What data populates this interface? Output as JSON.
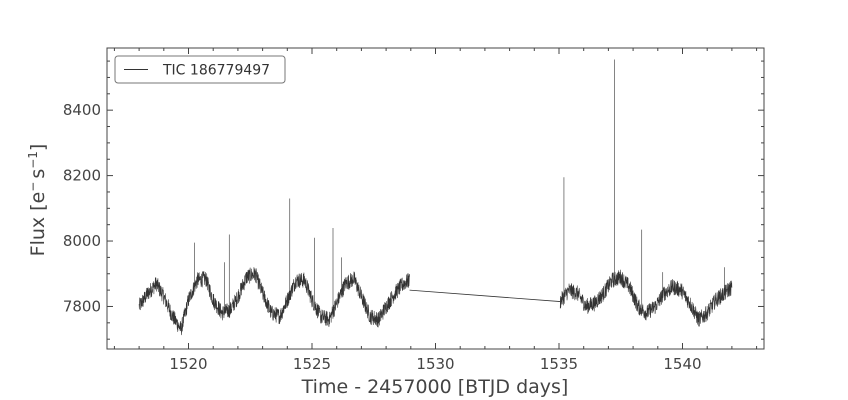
{
  "chart_data": {
    "type": "line",
    "title": "",
    "xlabel": "Time - 2457000 [BTJD days]",
    "ylabel_main": "Flux [e",
    "ylabel_sup1": "−",
    "ylabel_mid": "s",
    "ylabel_sup2": "−1",
    "ylabel_end": "]",
    "xlim": [
      1516.7,
      1543.3
    ],
    "ylim": [
      7670,
      8590
    ],
    "x_ticks": [
      1520,
      1525,
      1530,
      1535,
      1540
    ],
    "y_ticks": [
      7800,
      8000,
      8200,
      8400
    ],
    "x_minor_step": 1,
    "y_minor_step": 50,
    "grid": false,
    "legend_position": "top-left",
    "series": [
      {
        "name": "TIC 186779497",
        "color": "#333333",
        "segments": [
          {
            "x": [
              1518.0,
              1518.35,
              1518.7,
              1519.0,
              1519.35,
              1519.7,
              1520.0,
              1520.35,
              1520.7,
              1521.0,
              1521.35,
              1521.7,
              1522.0,
              1522.35,
              1522.7,
              1523.0,
              1523.35,
              1523.7,
              1524.0,
              1524.35,
              1524.7,
              1525.0,
              1525.35,
              1525.7,
              1526.0,
              1526.35,
              1526.7,
              1527.0,
              1527.35,
              1527.7,
              1528.0,
              1528.35,
              1528.7,
              1528.95
            ],
            "y": [
              7800,
              7840,
              7870,
              7830,
              7770,
              7730,
              7820,
              7880,
              7885,
              7820,
              7780,
              7790,
              7830,
              7890,
              7900,
              7840,
              7780,
              7770,
              7820,
              7880,
              7880,
              7820,
              7770,
              7760,
              7810,
              7870,
              7885,
              7830,
              7770,
              7760,
              7800,
              7840,
              7870,
              7880
            ]
          },
          {
            "x": [
              1528.95,
              1535.05
            ],
            "y": [
              7850,
              7815
            ]
          },
          {
            "x": [
              1535.05,
              1535.4,
              1535.75,
              1536.1,
              1536.45,
              1536.8,
              1537.15,
              1537.5,
              1537.85,
              1538.2,
              1538.55,
              1538.9,
              1539.25,
              1539.6,
              1539.95,
              1540.3,
              1540.65,
              1541.0,
              1541.35,
              1541.7,
              1542.0
            ],
            "y": [
              7815,
              7850,
              7840,
              7800,
              7810,
              7840,
              7880,
              7890,
              7860,
              7800,
              7780,
              7800,
              7840,
              7860,
              7850,
              7810,
              7760,
              7780,
              7820,
              7840,
              7860
            ]
          }
        ],
        "spikes": [
          {
            "x": 1520.25,
            "y": 7995
          },
          {
            "x": 1521.45,
            "y": 7935
          },
          {
            "x": 1521.65,
            "y": 8020
          },
          {
            "x": 1524.1,
            "y": 8130
          },
          {
            "x": 1525.1,
            "y": 8010
          },
          {
            "x": 1525.85,
            "y": 8040
          },
          {
            "x": 1526.2,
            "y": 7950
          },
          {
            "x": 1535.2,
            "y": 8195
          },
          {
            "x": 1537.25,
            "y": 8555
          },
          {
            "x": 1538.35,
            "y": 8035
          },
          {
            "x": 1539.2,
            "y": 7905
          },
          {
            "x": 1541.7,
            "y": 7920
          }
        ]
      }
    ]
  }
}
